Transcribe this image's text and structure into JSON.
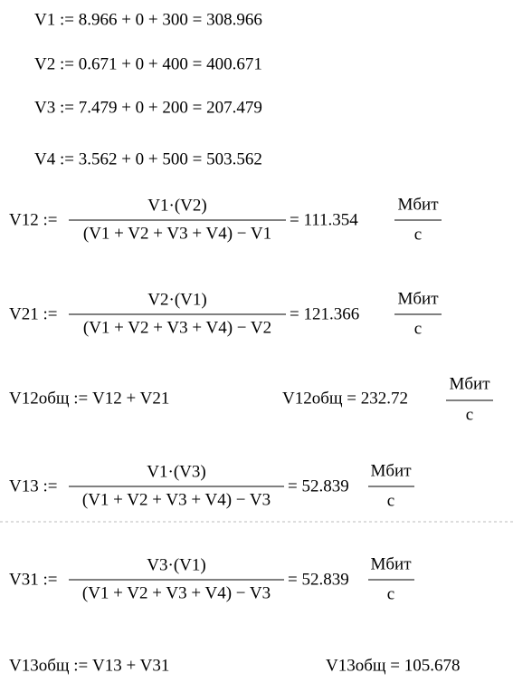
{
  "lines": [
    "V1 := 8.966 + 0 + 300 = 308.966",
    "V2 := 0.671 + 0 + 400 = 400.671",
    "V3 := 7.479 + 0 + 200 = 207.479",
    "V4 := 3.562 + 0 + 500 = 503.562"
  ],
  "fractions": [
    {
      "lhs": "V12 :=",
      "numerator": "V1·(V2)",
      "denominator": "(V1 + V2 + V3 + V4) − V1",
      "result": "= 111.354",
      "unit_numerator": "Мбит",
      "unit_denominator": "с"
    },
    {
      "lhs": "V21 :=",
      "numerator": "V2·(V1)",
      "denominator": "(V1 + V2 + V3 + V4) − V2",
      "result": "= 121.366",
      "unit_numerator": "Мбит",
      "unit_denominator": "с"
    },
    {
      "lhs": "V13 :=",
      "numerator": "V1·(V3)",
      "denominator": "(V1 + V2 + V3 + V4) − V3",
      "result": "= 52.839",
      "unit_numerator": "Мбит",
      "unit_denominator": "с"
    },
    {
      "lhs": "V31 :=",
      "numerator": "V3·(V1)",
      "denominator": "(V1 + V2 + V3 + V4) − V3",
      "result": "= 52.839",
      "unit_numerator": "Мбит",
      "unit_denominator": "с"
    }
  ],
  "totals": [
    {
      "definition": "V12общ := V12 + V21",
      "evaluation": "V12общ = 232.72",
      "unit_numerator": "Мбит",
      "unit_denominator": "с"
    },
    {
      "definition": "V13общ := V13 + V31",
      "evaluation": "V13общ = 105.678"
    }
  ]
}
